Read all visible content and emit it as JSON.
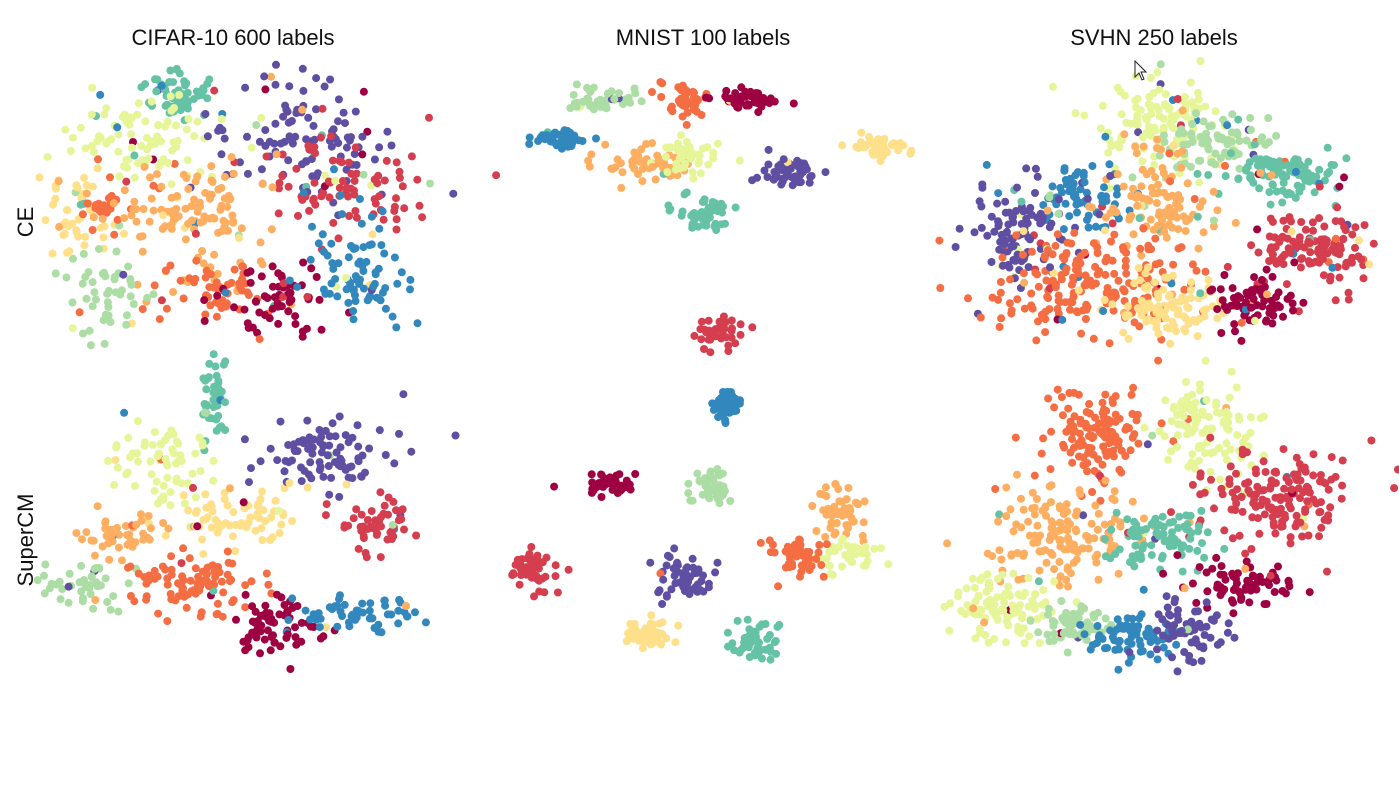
{
  "colors": {
    "palette": [
      "#9e0142",
      "#d53e4f",
      "#f46d43",
      "#fdae61",
      "#fee08b",
      "#e6f598",
      "#abdda4",
      "#66c2a5",
      "#3288bd",
      "#5e4fa2"
    ],
    "cursor": "#ffffff"
  },
  "chart_data": {
    "type": "scatter",
    "description_kind": "t-SNE embeddings, 3 datasets x 2 methods",
    "col_titles": [
      "CIFAR-10 600 labels",
      "MNIST 100 labels",
      "SVHN 250 labels"
    ],
    "row_labels": [
      "CE",
      "SuperCM"
    ],
    "legend": "none",
    "grid": false,
    "panels": [
      {
        "dataset": "CIFAR-10 600 labels",
        "method": "CE",
        "spread": 0.65,
        "clusters": [
          {
            "class": 7,
            "x": 36,
            "y": 13,
            "n": 60,
            "sx": 5,
            "sy": 5
          },
          {
            "class": 5,
            "x": 26,
            "y": 30,
            "n": 90,
            "sx": 11,
            "sy": 8
          },
          {
            "class": 9,
            "x": 67,
            "y": 28,
            "n": 110,
            "sx": 11,
            "sy": 10
          },
          {
            "class": 1,
            "x": 81,
            "y": 45,
            "n": 90,
            "sx": 12,
            "sy": 9
          },
          {
            "class": 4,
            "x": 9,
            "y": 57,
            "n": 50,
            "sx": 5,
            "sy": 8
          },
          {
            "class": 2,
            "x": 17,
            "y": 52,
            "n": 30,
            "sx": 5,
            "sy": 4
          },
          {
            "class": 3,
            "x": 38,
            "y": 56,
            "n": 120,
            "sx": 12,
            "sy": 11
          },
          {
            "class": 6,
            "x": 17,
            "y": 83,
            "n": 50,
            "sx": 5,
            "sy": 8
          },
          {
            "class": 2,
            "x": 44,
            "y": 83,
            "n": 55,
            "sx": 8,
            "sy": 5
          },
          {
            "class": 0,
            "x": 62,
            "y": 86,
            "n": 65,
            "sx": 8,
            "sy": 6
          },
          {
            "class": 8,
            "x": 82,
            "y": 77,
            "n": 80,
            "sx": 7,
            "sy": 9
          }
        ]
      },
      {
        "dataset": "MNIST 100 labels",
        "method": "CE",
        "spread": 0.15,
        "clusters": [
          {
            "class": 6,
            "x": 18,
            "y": 12,
            "n": 50,
            "sx": 5,
            "sy": 3
          },
          {
            "class": 2,
            "x": 40,
            "y": 13,
            "n": 45,
            "sx": 3,
            "sy": 5
          },
          {
            "class": 0,
            "x": 56,
            "y": 12,
            "n": 45,
            "sx": 4,
            "sy": 3
          },
          {
            "class": 8,
            "x": 8,
            "y": 34,
            "n": 45,
            "sx": 4,
            "sy": 3
          },
          {
            "class": 3,
            "x": 30,
            "y": 49,
            "n": 55,
            "sx": 6,
            "sy": 5
          },
          {
            "class": 5,
            "x": 41,
            "y": 43,
            "n": 40,
            "sx": 4,
            "sy": 5
          },
          {
            "class": 9,
            "x": 67,
            "y": 52,
            "n": 50,
            "sx": 4,
            "sy": 4
          },
          {
            "class": 4,
            "x": 92,
            "y": 38,
            "n": 45,
            "sx": 5,
            "sy": 3
          },
          {
            "class": 7,
            "x": 43,
            "y": 74,
            "n": 50,
            "sx": 4,
            "sy": 5
          }
        ]
      },
      {
        "dataset": "SVHN 250 labels",
        "method": "CE",
        "spread": 0.7,
        "clusters": [
          {
            "class": 5,
            "x": 48,
            "y": 18,
            "n": 130,
            "sx": 9,
            "sy": 9
          },
          {
            "class": 6,
            "x": 63,
            "y": 26,
            "n": 80,
            "sx": 7,
            "sy": 6
          },
          {
            "class": 7,
            "x": 81,
            "y": 37,
            "n": 110,
            "sx": 9,
            "sy": 5
          },
          {
            "class": 8,
            "x": 27,
            "y": 47,
            "n": 70,
            "sx": 6,
            "sy": 6
          },
          {
            "class": 9,
            "x": 10,
            "y": 58,
            "n": 110,
            "sx": 6,
            "sy": 9
          },
          {
            "class": 3,
            "x": 47,
            "y": 47,
            "n": 110,
            "sx": 8,
            "sy": 10
          },
          {
            "class": 2,
            "x": 28,
            "y": 78,
            "n": 200,
            "sx": 13,
            "sy": 9
          },
          {
            "class": 4,
            "x": 50,
            "y": 87,
            "n": 100,
            "sx": 8,
            "sy": 6
          },
          {
            "class": 1,
            "x": 87,
            "y": 66,
            "n": 130,
            "sx": 8,
            "sy": 7
          },
          {
            "class": 0,
            "x": 72,
            "y": 86,
            "n": 80,
            "sx": 5,
            "sy": 5
          }
        ]
      },
      {
        "dataset": "CIFAR-10 600 labels",
        "method": "SuperCM",
        "spread": 0.35,
        "clusters": [
          {
            "class": 7,
            "x": 44,
            "y": 9,
            "n": 45,
            "sx": 2,
            "sy": 6
          },
          {
            "class": 5,
            "x": 30,
            "y": 30,
            "n": 70,
            "sx": 7,
            "sy": 7
          },
          {
            "class": 4,
            "x": 47,
            "y": 50,
            "n": 70,
            "sx": 9,
            "sy": 5
          },
          {
            "class": 9,
            "x": 73,
            "y": 28,
            "n": 90,
            "sx": 8,
            "sy": 7
          },
          {
            "class": 1,
            "x": 87,
            "y": 52,
            "n": 55,
            "sx": 5,
            "sy": 5
          },
          {
            "class": 3,
            "x": 18,
            "y": 57,
            "n": 45,
            "sx": 6,
            "sy": 4
          },
          {
            "class": 6,
            "x": 9,
            "y": 75,
            "n": 45,
            "sx": 6,
            "sy": 5
          },
          {
            "class": 2,
            "x": 38,
            "y": 75,
            "n": 90,
            "sx": 8,
            "sy": 6
          },
          {
            "class": 0,
            "x": 61,
            "y": 89,
            "n": 65,
            "sx": 6,
            "sy": 6
          },
          {
            "class": 8,
            "x": 81,
            "y": 85,
            "n": 55,
            "sx": 8,
            "sy": 4
          }
        ]
      },
      {
        "dataset": "MNIST 100 labels",
        "method": "SuperCM",
        "spread": 0.12,
        "clusters": [
          {
            "class": 1,
            "x": 55,
            "y": -20,
            "n": 45,
            "sx": 3,
            "sy": 3
          },
          {
            "class": 8,
            "x": 57,
            "y": 7,
            "n": 40,
            "sx": 2,
            "sy": 3
          },
          {
            "class": 0,
            "x": 26,
            "y": 35,
            "n": 45,
            "sx": 3,
            "sy": 2
          },
          {
            "class": 6,
            "x": 53,
            "y": 37,
            "n": 45,
            "sx": 3,
            "sy": 3
          },
          {
            "class": 3,
            "x": 87,
            "y": 46,
            "n": 50,
            "sx": 3,
            "sy": 5
          },
          {
            "class": 5,
            "x": 89,
            "y": 62,
            "n": 40,
            "sx": 5,
            "sy": 3
          },
          {
            "class": 2,
            "x": 75,
            "y": 62,
            "n": 50,
            "sx": 3,
            "sy": 4
          },
          {
            "class": 1,
            "x": 6,
            "y": 67,
            "n": 50,
            "sx": 3,
            "sy": 5
          },
          {
            "class": 9,
            "x": 45,
            "y": 70,
            "n": 55,
            "sx": 4,
            "sy": 4
          },
          {
            "class": 4,
            "x": 36,
            "y": 92,
            "n": 45,
            "sx": 3,
            "sy": 3
          },
          {
            "class": 7,
            "x": 65,
            "y": 95,
            "n": 45,
            "sx": 3,
            "sy": 4
          }
        ]
      },
      {
        "dataset": "SVHN 250 labels",
        "method": "SuperCM",
        "spread": 0.25,
        "clusters": [
          {
            "class": 2,
            "x": 35,
            "y": 20,
            "n": 130,
            "sx": 8,
            "sy": 9
          },
          {
            "class": 5,
            "x": 64,
            "y": 17,
            "n": 110,
            "sx": 6,
            "sy": 9
          },
          {
            "class": 1,
            "x": 82,
            "y": 42,
            "n": 160,
            "sx": 11,
            "sy": 8
          },
          {
            "class": 3,
            "x": 26,
            "y": 56,
            "n": 150,
            "sx": 10,
            "sy": 9
          },
          {
            "class": 7,
            "x": 51,
            "y": 56,
            "n": 90,
            "sx": 7,
            "sy": 5
          },
          {
            "class": 0,
            "x": 74,
            "y": 73,
            "n": 70,
            "sx": 7,
            "sy": 4
          },
          {
            "class": 5,
            "x": 11,
            "y": 80,
            "n": 110,
            "sx": 7,
            "sy": 6
          },
          {
            "class": 6,
            "x": 29,
            "y": 87,
            "n": 60,
            "sx": 5,
            "sy": 4
          },
          {
            "class": 8,
            "x": 44,
            "y": 92,
            "n": 70,
            "sx": 5,
            "sy": 4
          },
          {
            "class": 9,
            "x": 59,
            "y": 89,
            "n": 60,
            "sx": 4,
            "sy": 5
          }
        ]
      }
    ]
  }
}
